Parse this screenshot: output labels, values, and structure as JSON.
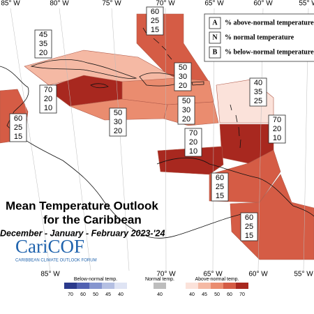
{
  "map": {
    "lon_top": [
      "85° W",
      "80° W",
      "75° W",
      "70° W",
      "65° W",
      "60° W",
      "55° W"
    ],
    "lon_bottom": [
      "85° W",
      "70° W",
      "65° W",
      "60° W",
      "55° W"
    ],
    "key": [
      {
        "letter": "A",
        "text": "% above-normal temperature"
      },
      {
        "letter": "N",
        "text": "% normal temperature"
      },
      {
        "letter": "B",
        "text": "% below-normal temperature"
      }
    ],
    "regions": [
      {
        "values": [
          60,
          25,
          15
        ]
      },
      {
        "values": [
          45,
          35,
          20
        ]
      },
      {
        "values": [
          50,
          30,
          20
        ]
      },
      {
        "values": [
          70,
          20,
          10
        ]
      },
      {
        "values": [
          40,
          35,
          25
        ]
      },
      {
        "values": [
          60,
          25,
          15
        ]
      },
      {
        "values": [
          50,
          30,
          20
        ]
      },
      {
        "values": [
          50,
          30,
          20
        ]
      },
      {
        "values": [
          70,
          20,
          10
        ]
      },
      {
        "values": [
          70,
          20,
          10
        ]
      },
      {
        "values": [
          60,
          25,
          15
        ]
      },
      {
        "values": [
          60,
          25,
          15
        ]
      }
    ],
    "title": {
      "line1": "Mean Temperature Outlook",
      "line2": "for the Caribbean",
      "season": "December - January - February 2023-'24",
      "logo": "CariCOF",
      "logo_sub": "CARIBBEAN CLIMATE OUTLOOK FORUM"
    },
    "scale": {
      "below": {
        "label": "Below-normal temp.",
        "ticks": [
          70,
          60,
          50,
          45,
          40
        ],
        "colors": [
          "#2b3a8c",
          "#5262b2",
          "#8595cf",
          "#b4bfe2",
          "#dfe4f4"
        ]
      },
      "normal": {
        "label": "Normal temp.",
        "ticks": [
          40
        ],
        "colors": [
          "#bdbdbd"
        ]
      },
      "above": {
        "label": "Above-normal temp.",
        "ticks": [
          40,
          45,
          50,
          60,
          70
        ],
        "colors": [
          "#fbe2da",
          "#f5b9a4",
          "#ea8c6f",
          "#d55c45",
          "#a8281f"
        ]
      }
    }
  }
}
